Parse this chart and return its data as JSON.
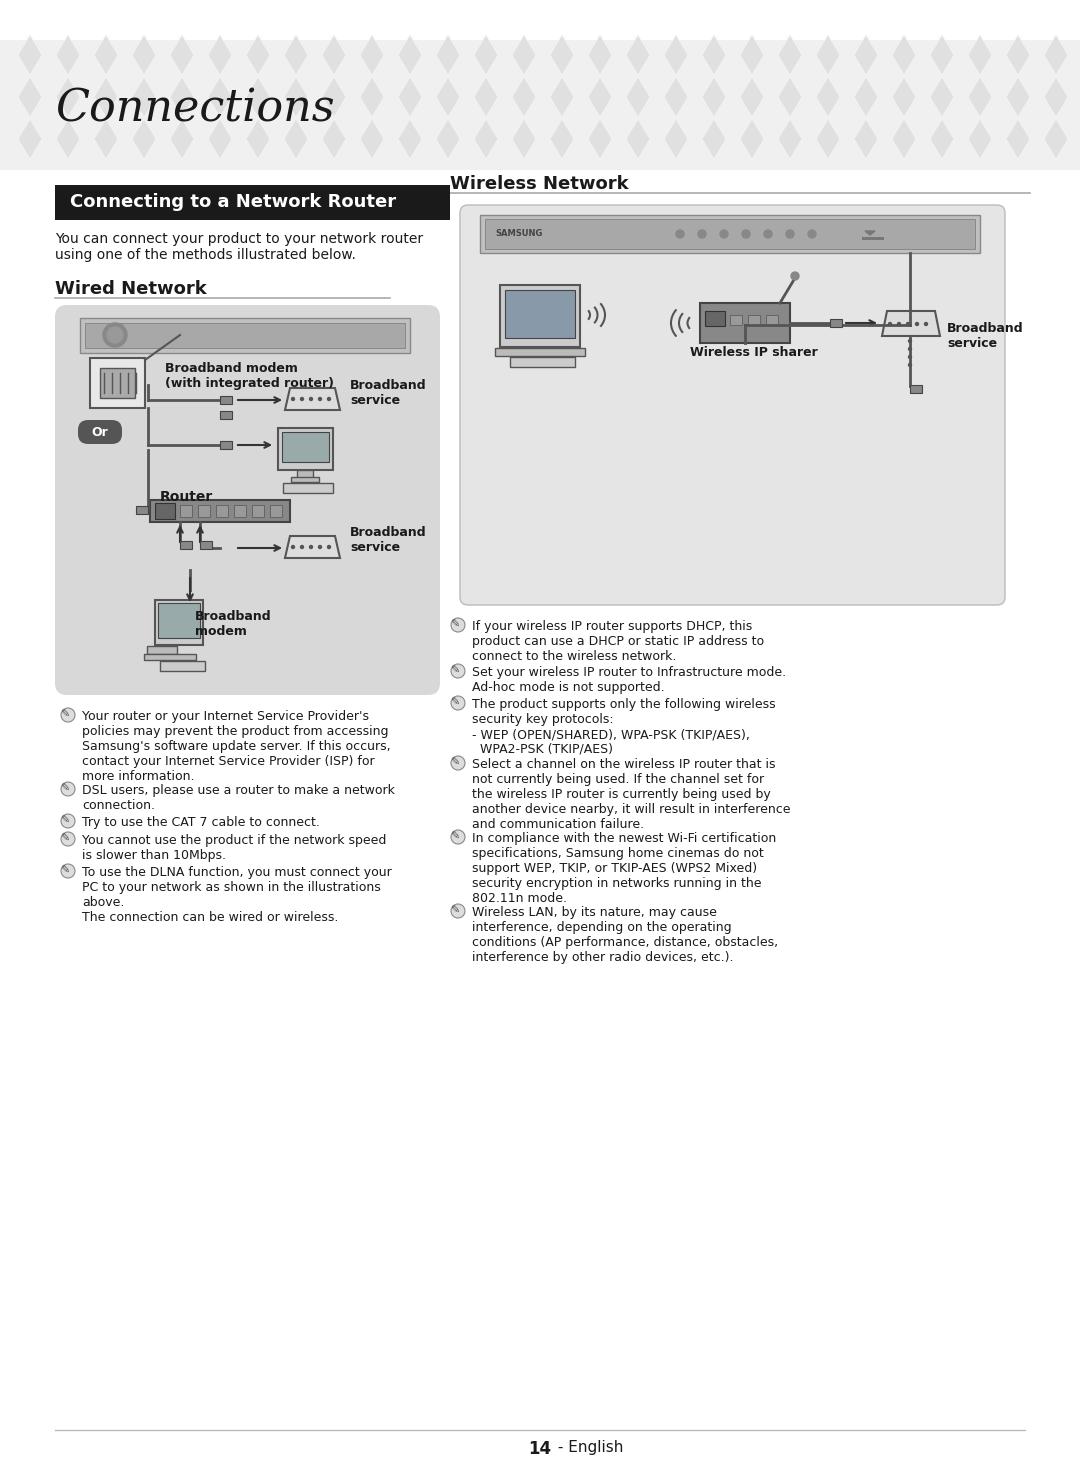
{
  "bg_color": "#ffffff",
  "header_bg": "#e8e8e8",
  "header_pattern_color": "#d0d0d0",
  "title_text": "Connections",
  "section_header_text": "Connecting to a Network Router",
  "section_header_bg": "#1a1a1a",
  "section_header_fg": "#ffffff",
  "intro_text": "You can connect your product to your network router\nusing one of the methods illustrated below.",
  "wired_title": "Wired Network",
  "wireless_title": "Wireless Network",
  "wired_diagram_bg": "#d8d8d8",
  "wired_labels": [
    "Broadband modem\n(with integrated router)",
    "Broadband\nservice",
    "Or",
    "Router",
    "Broadband\nservice",
    "Broadband\nmodem"
  ],
  "wireless_labels": [
    "Wireless IP sharer",
    "Broadband\nservice"
  ],
  "wired_bullets": [
    "Your router or your Internet Service Provider's\npolicies may prevent the product from accessing\nSamsung's software update server. If this occurs,\ncontact your Internet Service Provider (ISP) for\nmore information.",
    "DSL users, please use a router to make a network\nconnection.",
    "Try to use the CAT 7 cable to connect.",
    "You cannot use the product if the network speed\nis slower than 10Mbps.",
    "To use the DLNA function, you must connect your\nPC to your network as shown in the illustrations\nabove.\nThe connection can be wired or wireless."
  ],
  "wireless_bullets": [
    "If your wireless IP router supports DHCP, this\nproduct can use a DHCP or static IP address to\nconnect to the wireless network.",
    "Set your wireless IP router to Infrastructure mode.\nAd-hoc mode is not supported.",
    "The product supports only the following wireless\nsecurity key protocols:\n- WEP (OPEN/SHARED), WPA-PSK (TKIP/AES),\n  WPA2-PSK (TKIP/AES)",
    "Select a channel on the wireless IP router that is\nnot currently being used. If the channel set for\nthe wireless IP router is currently being used by\nanother device nearby, it will result in interference\nand communication failure.",
    "In compliance with the newest Wi-Fi certification\nspecifications, Samsung home cinemas do not\nsupport WEP, TKIP, or TKIP-AES (WPS2 Mixed)\nsecurity encryption in networks running in the\n802.11n mode.",
    "Wireless LAN, by its nature, may cause\ninterference, depending on the operating\nconditions (AP performance, distance, obstacles,\ninterference by other radio devices, etc.)."
  ],
  "page_number": "14",
  "page_suffix": " - English"
}
